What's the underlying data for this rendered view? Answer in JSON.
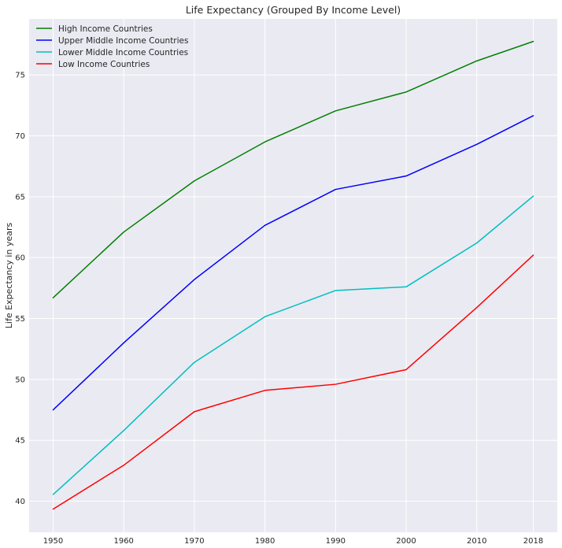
{
  "chart_data": {
    "type": "line",
    "title": "Life Expectancy (Grouped By Income Level)",
    "xlabel": "",
    "ylabel": "Life Expectancy in years",
    "x": [
      1950,
      1960,
      1970,
      1980,
      1990,
      2000,
      2010,
      2018
    ],
    "xticks": [
      "1950",
      "1960",
      "1970",
      "1980",
      "1990",
      "2000",
      "2010",
      "2018"
    ],
    "yticks": [
      40,
      45,
      50,
      55,
      60,
      65,
      70,
      75
    ],
    "xlim": [
      1946.6,
      2021.4
    ],
    "ylim": [
      37.45,
      79.6
    ],
    "grid": true,
    "legend_position": "top-left",
    "background": "#eaeaf2",
    "series": [
      {
        "name": "High Income Countries",
        "color": "#008000",
        "values": [
          56.7,
          62.1,
          66.3,
          69.5,
          72.05,
          73.6,
          76.15,
          77.75
        ]
      },
      {
        "name": "Upper Middle Income Countries",
        "color": "#0000ff",
        "values": [
          47.5,
          53.0,
          58.2,
          62.65,
          65.6,
          66.7,
          69.3,
          71.65
        ]
      },
      {
        "name": "Lower Middle Income Countries",
        "color": "#00bfbf",
        "values": [
          40.55,
          45.8,
          51.4,
          55.15,
          57.3,
          57.6,
          61.2,
          65.05
        ]
      },
      {
        "name": "Low Income Countries",
        "color": "#ff0000",
        "values": [
          39.35,
          42.95,
          47.35,
          49.1,
          49.6,
          50.8,
          55.9,
          60.2
        ]
      }
    ]
  }
}
